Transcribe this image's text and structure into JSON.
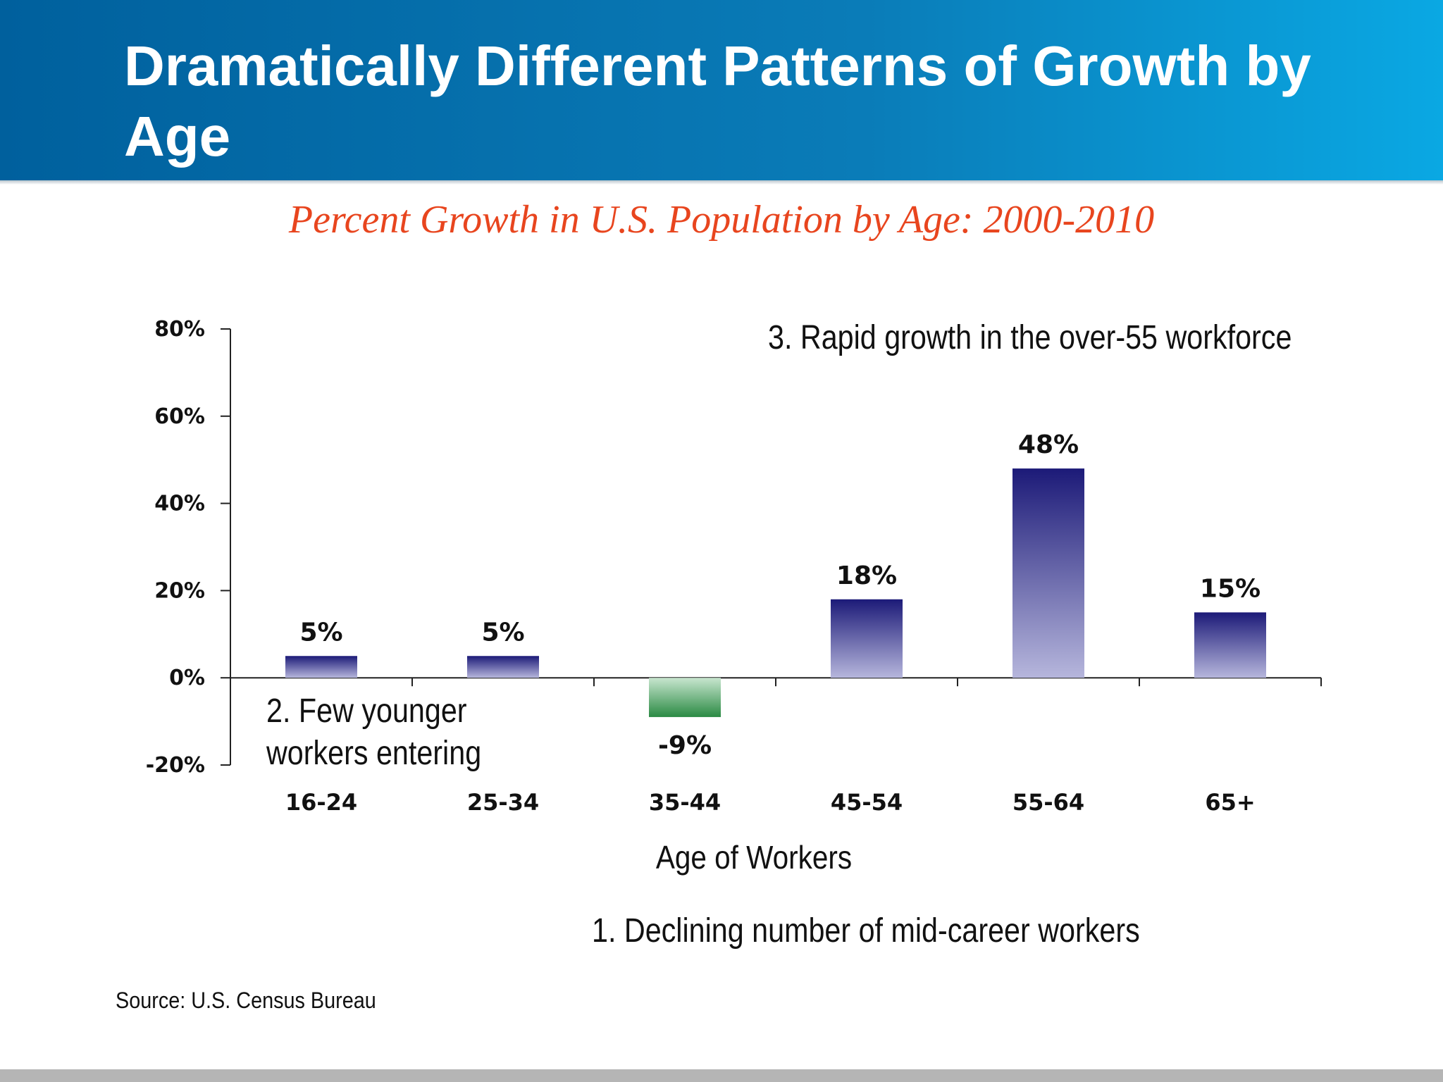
{
  "slide": {
    "title": "Dramatically Different Patterns of Growth by Age",
    "source": "Source: U.S. Census Bureau"
  },
  "annotations": {
    "three": "3.  Rapid growth in the over-55 workforce",
    "two": "2.  Few younger\nworkers entering",
    "one": "1.  Declining number of mid-career workers"
  },
  "colors": {
    "banner": "#0a7cb8",
    "chart_title": "#e8451e",
    "positive_bar_top": "#1c1a78",
    "positive_bar_bottom": "#b6b6dc",
    "negative_bar_top": "#c8e6cf",
    "negative_bar_bottom": "#2a8a43"
  },
  "chart_data": {
    "type": "bar",
    "title": "Percent Growth in U.S. Population by Age:  2000-2010",
    "xlabel": "Age of Workers",
    "ylabel": "",
    "categories": [
      "16-24",
      "25-34",
      "35-44",
      "45-54",
      "55-64",
      "65+"
    ],
    "values": [
      5,
      5,
      -9,
      18,
      48,
      15
    ],
    "value_labels": [
      "5%",
      "5%",
      "-9%",
      "18%",
      "48%",
      "15%"
    ],
    "ylim": [
      -20,
      80
    ],
    "yticks": [
      80,
      60,
      40,
      20,
      0,
      -20
    ],
    "ytick_labels": [
      "80%",
      "60%",
      "40%",
      "20%",
      "0%",
      "-20%"
    ],
    "grid": false,
    "legend": "none"
  }
}
